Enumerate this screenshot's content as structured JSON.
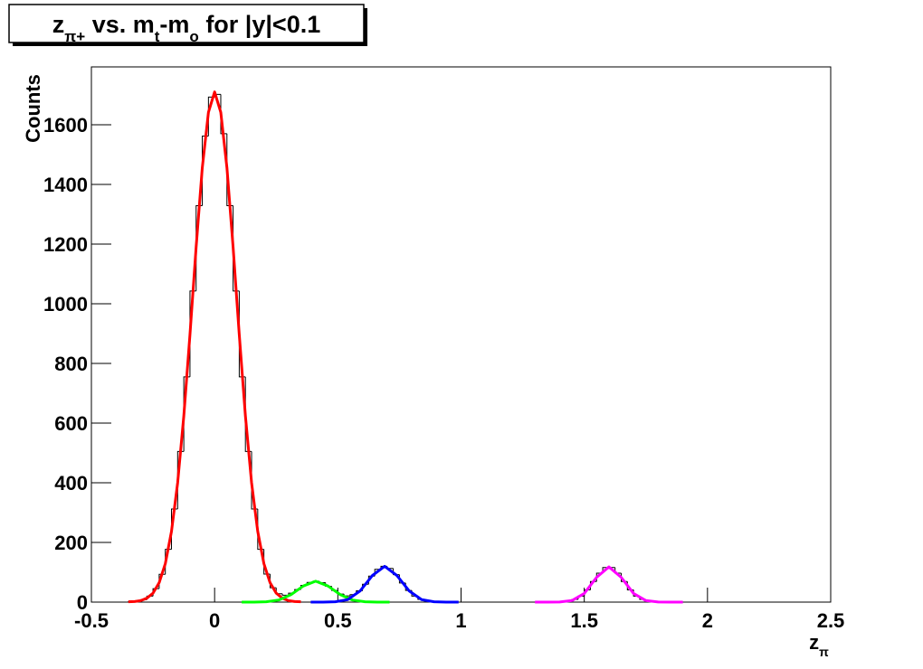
{
  "chart_data": {
    "type": "histogram",
    "title": [
      {
        "text": "z"
      },
      {
        "text": "π+",
        "sub": true
      },
      {
        "text": " vs. m"
      },
      {
        "text": "t",
        "sub": true
      },
      {
        "text": "-m"
      },
      {
        "text": "o",
        "sub": true
      },
      {
        "text": " for |y|<0.1"
      }
    ],
    "xlabel": [
      {
        "text": "z"
      },
      {
        "text": "π",
        "sub": true
      }
    ],
    "ylabel": "Counts",
    "xlim": [
      -0.5,
      2.5
    ],
    "ylim": [
      0,
      1794
    ],
    "xticks": [
      -0.5,
      0,
      0.5,
      1,
      1.5,
      2,
      2.5
    ],
    "yticks": [
      0,
      200,
      400,
      600,
      800,
      1000,
      1200,
      1400,
      1600
    ],
    "color": "#000000",
    "bins": [
      -0.5,
      -0.475,
      -0.45,
      -0.425,
      -0.4,
      -0.375,
      -0.35,
      -0.325,
      -0.3,
      -0.275,
      -0.25,
      -0.225,
      -0.2,
      -0.175,
      -0.15,
      -0.125,
      -0.1,
      -0.075,
      -0.05,
      -0.025,
      0,
      0.025,
      0.05,
      0.075,
      0.1,
      0.125,
      0.15,
      0.175,
      0.2,
      0.225,
      0.25,
      0.275,
      0.3,
      0.325,
      0.35,
      0.375,
      0.4,
      0.425,
      0.45,
      0.475,
      0.5,
      0.525,
      0.55,
      0.575,
      0.6,
      0.625,
      0.65,
      0.675,
      0.7,
      0.725,
      0.75,
      0.775,
      0.8,
      0.825,
      0.85,
      0.875,
      0.9,
      0.925,
      0.95,
      0.975,
      1,
      1.025,
      1.05,
      1.075,
      1.1,
      1.125,
      1.15,
      1.175,
      1.2,
      1.225,
      1.25,
      1.275,
      1.3,
      1.325,
      1.35,
      1.375,
      1.4,
      1.425,
      1.45,
      1.475,
      1.5,
      1.525,
      1.55,
      1.575,
      1.6,
      1.625,
      1.65,
      1.675,
      1.7,
      1.725,
      1.75,
      1.775,
      1.8,
      1.825,
      1.85,
      1.875,
      1.9,
      1.925,
      1.95,
      1.975,
      2,
      2.025,
      2.05,
      2.075,
      2.1,
      2.125,
      2.15,
      2.175,
      2.2,
      2.225,
      2.25,
      2.275,
      2.3,
      2.325,
      2.35,
      2.375,
      2.4,
      2.425,
      2.45,
      2.475,
      2.5
    ],
    "counts": [
      0,
      0,
      0,
      0,
      0,
      0,
      1,
      3,
      8,
      20,
      45,
      93,
      177,
      312,
      505,
      755,
      1043,
      1329,
      1562,
      1693,
      1702,
      1570,
      1329,
      1043,
      755,
      505,
      312,
      177,
      94,
      48,
      28,
      23,
      30,
      42,
      56,
      66,
      70,
      65,
      53,
      39,
      27,
      21,
      25,
      38,
      60,
      87,
      110,
      120,
      113,
      92,
      64,
      39,
      20,
      9,
      4,
      1,
      0,
      0,
      0,
      0,
      0,
      0,
      0,
      0,
      0,
      0,
      0,
      0,
      0,
      0,
      0,
      0,
      0,
      0,
      0,
      0,
      1,
      3,
      9,
      20,
      41,
      69,
      97,
      116,
      116,
      97,
      69,
      41,
      20,
      9,
      3,
      1,
      0,
      0,
      0,
      0,
      0,
      0,
      0,
      0,
      0,
      0,
      0,
      0,
      0,
      0,
      0,
      0,
      0,
      0,
      0,
      0,
      0,
      0,
      0,
      0,
      0,
      0,
      0,
      0
    ],
    "fits": [
      {
        "color": "#ff0000",
        "x": [
          -0.35,
          -0.325,
          -0.3,
          -0.275,
          -0.25,
          -0.225,
          -0.2,
          -0.175,
          -0.15,
          -0.125,
          -0.1,
          -0.075,
          -0.05,
          -0.025,
          0,
          0.025,
          0.05,
          0.075,
          0.1,
          0.125,
          0.15,
          0.175,
          0.2,
          0.225,
          0.25,
          0.275,
          0.3,
          0.325,
          0.35
        ],
        "values": [
          1,
          2,
          5,
          13,
          30,
          65,
          129,
          237,
          400,
          624,
          897,
          1190,
          1456,
          1642,
          1710,
          1642,
          1456,
          1190,
          897,
          624,
          400,
          237,
          129,
          65,
          30,
          13,
          5,
          2,
          1
        ]
      },
      {
        "color": "#00ff00",
        "x": [
          0.11,
          0.16,
          0.21,
          0.26,
          0.31,
          0.36,
          0.41,
          0.46,
          0.51,
          0.56,
          0.61,
          0.66,
          0.71
        ],
        "values": [
          0,
          0.1,
          1.2,
          7,
          25,
          54,
          70,
          54,
          25,
          7,
          1.2,
          0.1,
          0
        ]
      },
      {
        "color": "#0000ff",
        "x": [
          0.39,
          0.44,
          0.49,
          0.54,
          0.59,
          0.64,
          0.69,
          0.74,
          0.79,
          0.84,
          0.89,
          0.94,
          0.99
        ],
        "values": [
          0,
          0.1,
          1.1,
          8.4,
          37,
          89,
          120,
          89,
          37,
          8.4,
          1.1,
          0.1,
          0
        ]
      },
      {
        "color": "#ff00ff",
        "x": [
          1.3,
          1.35,
          1.4,
          1.45,
          1.5,
          1.55,
          1.6,
          1.65,
          1.7,
          1.75,
          1.8,
          1.85,
          1.9
        ],
        "values": [
          0,
          0,
          0.45,
          5.2,
          29,
          83,
          118,
          83,
          29,
          5.2,
          0.45,
          0,
          0
        ]
      }
    ]
  }
}
